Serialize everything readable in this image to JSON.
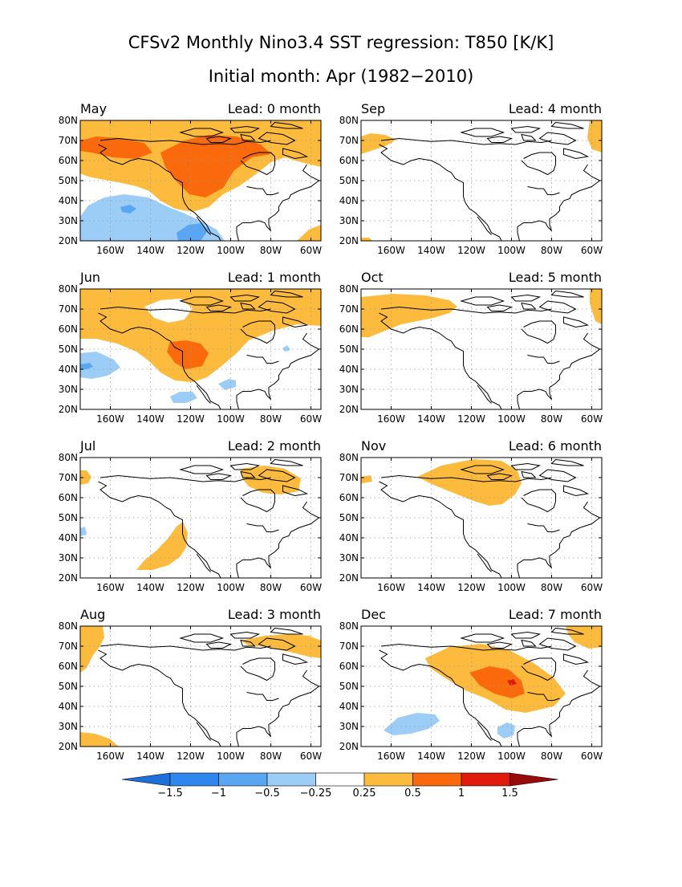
{
  "figure": {
    "title": "CFSv2 Monthly Nino3.4 SST regression: T850 [K/K]",
    "subtitle": "Initial month: Apr (1982−2010)"
  },
  "axes": {
    "lat_labels": [
      "80N",
      "70N",
      "60N",
      "50N",
      "40N",
      "30N",
      "20N"
    ],
    "lon_labels": [
      "160W",
      "140W",
      "120W",
      "100W",
      "80W",
      "60W"
    ]
  },
  "panels": [
    {
      "month": "May",
      "lead": "Lead: 0 month"
    },
    {
      "month": "Sep",
      "lead": "Lead: 4 month"
    },
    {
      "month": "Jun",
      "lead": "Lead: 1 month"
    },
    {
      "month": "Oct",
      "lead": "Lead: 5 month"
    },
    {
      "month": "Jul",
      "lead": "Lead: 2 month"
    },
    {
      "month": "Nov",
      "lead": "Lead: 6 month"
    },
    {
      "month": "Aug",
      "lead": "Lead: 3 month"
    },
    {
      "month": "Dec",
      "lead": "Lead: 7 month"
    }
  ],
  "colorbar": {
    "labels": [
      "−1.5",
      "−1",
      "−0.5",
      "−0.25",
      "0.25",
      "0.5",
      "1",
      "1.5"
    ],
    "colors": [
      "#1e6fd8",
      "#2f86ee",
      "#5aa6f2",
      "#9ccdf7",
      "#ffffff",
      "#fdbb3d",
      "#fa6a0c",
      "#e11b0b",
      "#9a0a0a"
    ]
  },
  "chart_data": {
    "type": "heatmap",
    "variable": "T850 regression on Nino3.4 SST",
    "units": "K/K",
    "lat_range": [
      20,
      80
    ],
    "lon_range": [
      -175,
      -55
    ],
    "contour_levels": [
      -1.5,
      -1,
      -0.5,
      -0.25,
      0.25,
      0.5,
      1,
      1.5
    ],
    "panels": [
      {
        "month": "May",
        "lead": 0
      },
      {
        "month": "Sep",
        "lead": 4
      },
      {
        "month": "Jun",
        "lead": 1
      },
      {
        "month": "Oct",
        "lead": 5
      },
      {
        "month": "Jul",
        "lead": 2
      },
      {
        "month": "Nov",
        "lead": 6
      },
      {
        "month": "Aug",
        "lead": 3
      },
      {
        "month": "Dec",
        "lead": 7
      }
    ]
  }
}
